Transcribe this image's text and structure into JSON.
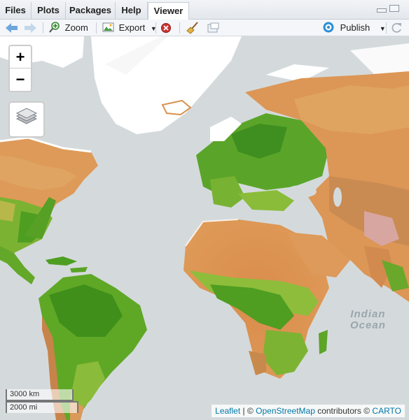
{
  "tabs": [
    "Files",
    "Plots",
    "Packages",
    "Help",
    "Viewer"
  ],
  "active_tab": "Viewer",
  "toolbar": {
    "zoom_label": "Zoom",
    "export_label": "Export",
    "publish_label": "Publish"
  },
  "map": {
    "zoom_in": "+",
    "zoom_out": "−",
    "ocean_label_line1": "Indian",
    "ocean_label_line2": "Ocean",
    "scale_km": "3000 km",
    "scale_mi": "2000 mi",
    "attribution": {
      "leaflet": "Leaflet",
      "sep": " | © ",
      "osm": "OpenStreetMap",
      "contrib": " contributors © ",
      "carto": "CARTO"
    }
  }
}
